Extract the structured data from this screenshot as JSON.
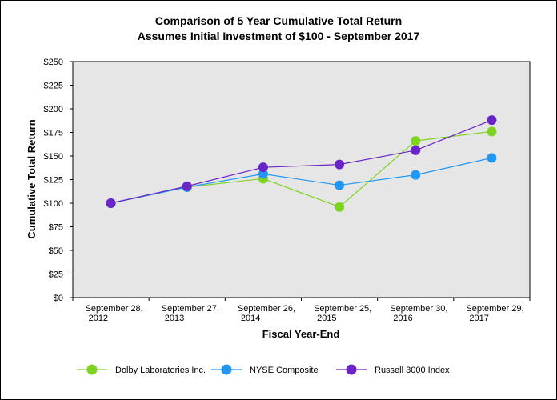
{
  "chart_data": {
    "type": "line",
    "title": "Comparison of 5 Year Cumulative Total Return",
    "subtitle": "Assumes Initial Investment of $100 - September 2017",
    "xlabel": "Fiscal Year-End",
    "ylabel": "Cumulative Total Return",
    "categories": [
      [
        "September 28,",
        "2012"
      ],
      [
        "September 27,",
        "2013"
      ],
      [
        "September 26,",
        "2014"
      ],
      [
        "September 25,",
        "2015"
      ],
      [
        "September 30,",
        "2016"
      ],
      [
        "September 29,",
        "2017"
      ]
    ],
    "ylim": [
      0,
      250
    ],
    "yticks": [
      0,
      25,
      50,
      75,
      100,
      125,
      150,
      175,
      200,
      225,
      250
    ],
    "ytick_labels": [
      "$0",
      "$25",
      "$50",
      "$75",
      "$100",
      "$125",
      "$150",
      "$175",
      "$200",
      "$225",
      "$250"
    ],
    "grid": false,
    "legend_position": "bottom",
    "series": [
      {
        "name": "Dolby Laboratories Inc.",
        "color": "#7ed321",
        "values": [
          100,
          117,
          126,
          96,
          166,
          176
        ]
      },
      {
        "name": "NYSE Composite",
        "color": "#1f97f3",
        "values": [
          100,
          117,
          131,
          119,
          130,
          148
        ]
      },
      {
        "name": "Russell 3000 Index",
        "color": "#6a25c9",
        "values": [
          100,
          118,
          138,
          141,
          156,
          188
        ]
      }
    ]
  }
}
